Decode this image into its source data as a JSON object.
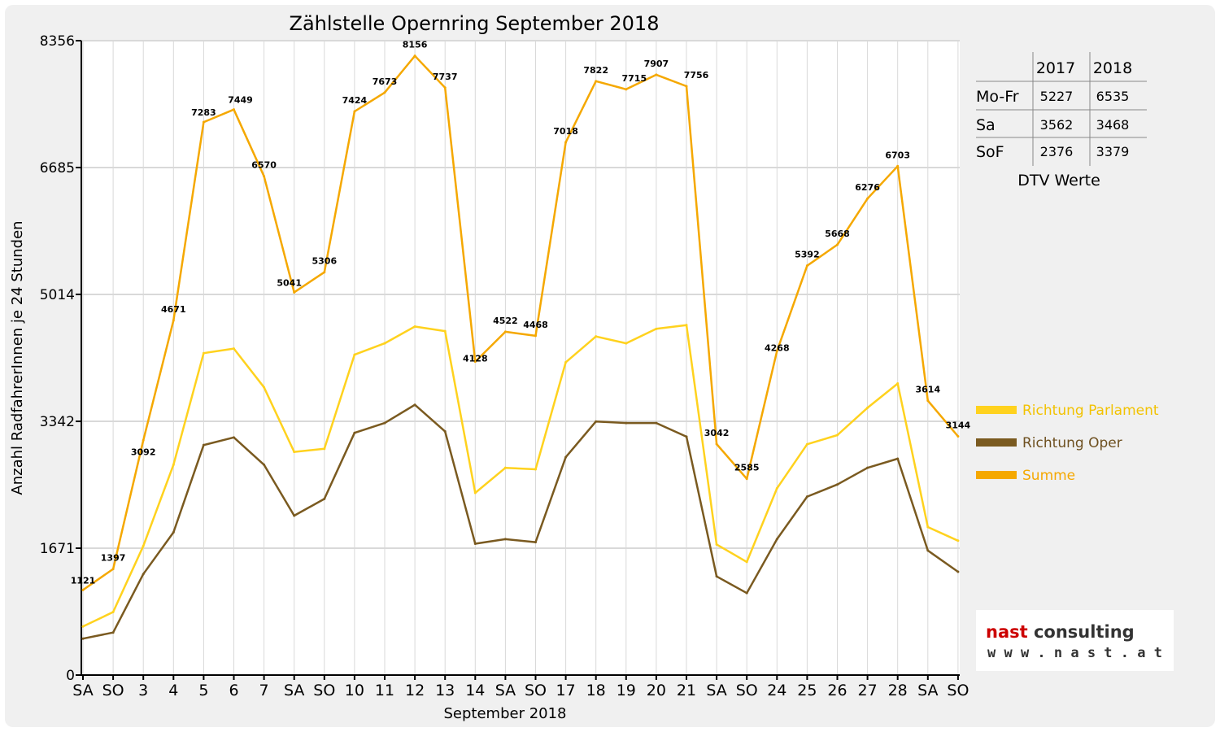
{
  "chart_data": {
    "type": "line",
    "title": "Zählstelle Opernring September 2018",
    "xlabel": "September 2018",
    "ylabel": "Anzahl RadfahrerInnen je 24 Stunden",
    "yticks": [
      0,
      1671,
      3342,
      5014,
      6685,
      8356
    ],
    "ylim": [
      0,
      8356
    ],
    "grid": true,
    "legend_position": "right",
    "categories": [
      "SA",
      "SO",
      "3",
      "4",
      "5",
      "6",
      "7",
      "SA",
      "SO",
      "10",
      "11",
      "12",
      "13",
      "14",
      "SA",
      "SO",
      "17",
      "18",
      "19",
      "20",
      "21",
      "SA",
      "SO",
      "24",
      "25",
      "26",
      "27",
      "28",
      "SA",
      "SO"
    ],
    "weekend_category_color": "#ff0000",
    "series": [
      {
        "name": "Richtung Parlament",
        "color": "#ffd21e",
        "values": [
          640,
          830,
          1700,
          2770,
          4240,
          4300,
          3790,
          2940,
          2980,
          4220,
          4370,
          4590,
          4530,
          2400,
          2730,
          2710,
          4120,
          4460,
          4370,
          4560,
          4610,
          1720,
          1490,
          2460,
          3040,
          3160,
          3520,
          3840,
          1950,
          1770
        ],
        "labels_shown": false
      },
      {
        "name": "Richtung Oper",
        "color": "#7a5a20",
        "values": [
          480,
          560,
          1330,
          1880,
          3030,
          3130,
          2770,
          2100,
          2320,
          3190,
          3320,
          3560,
          3210,
          1730,
          1790,
          1750,
          2870,
          3340,
          3320,
          3320,
          3140,
          1300,
          1080,
          1790,
          2350,
          2510,
          2730,
          2850,
          1640,
          1360
        ],
        "labels_shown": false
      },
      {
        "name": "Summe",
        "color": "#f5a800",
        "values": [
          1121,
          1397,
          3092,
          4671,
          7283,
          7449,
          6570,
          5041,
          5306,
          7424,
          7673,
          8156,
          7737,
          4128,
          4522,
          4468,
          7018,
          7822,
          7715,
          7907,
          7756,
          3042,
          2585,
          4268,
          5392,
          5668,
          6276,
          6703,
          3614,
          3144
        ],
        "data_labels": [
          "1121",
          "1397",
          "3092",
          "4671",
          "7283",
          "7449",
          "6570",
          "5041",
          "5306",
          "7424",
          "7673",
          "8156",
          "7737",
          "4128",
          "4522",
          "4468",
          "7018",
          "7822",
          "7715",
          "7907",
          "7756",
          "3042",
          "2585",
          "4268",
          "5392",
          "5668",
          "6276",
          "6703",
          "3614",
          "3144"
        ],
        "labels_shown": true
      }
    ]
  },
  "dtv_table": {
    "caption": "DTV Werte",
    "columns": [
      "2017",
      "2018"
    ],
    "rows": [
      {
        "label": "Mo-Fr",
        "values": [
          "5227",
          "6535"
        ]
      },
      {
        "label": "Sa",
        "values": [
          "3562",
          "3468"
        ]
      },
      {
        "label": "SoF",
        "values": [
          "2376",
          "3379"
        ]
      }
    ]
  },
  "logo": {
    "name": "nast consulting",
    "url_text": "w w w . n a s t . a t",
    "accent_color": "#cc0000"
  },
  "colors": {
    "background": "#f0f0f0",
    "plot_background": "#ffffff",
    "gridline": "#d9d9d9"
  }
}
